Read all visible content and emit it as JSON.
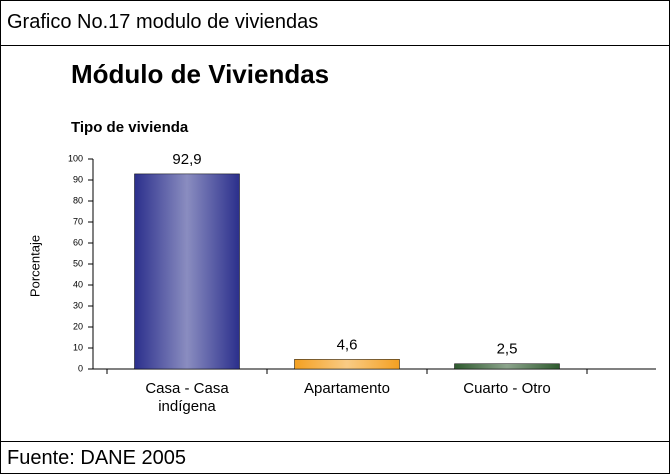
{
  "header": "Grafico No.17 modulo de viviendas",
  "footer": "Fuente: DANE 2005",
  "chart_data": {
    "type": "bar",
    "title": "Módulo de Viviendas",
    "subtitle": "Tipo de vivienda",
    "y_label": "Porcentaje",
    "categories": [
      "Casa - Casa indígena",
      "Apartamento",
      "Cuarto - Otro"
    ],
    "values": [
      92.9,
      4.6,
      2.5
    ],
    "value_labels": [
      "92,9",
      "4,6",
      "2,5"
    ],
    "colors": [
      "#2b2f8c",
      "#f4a021",
      "#2e5a2e"
    ],
    "ylim": [
      0,
      100
    ],
    "yticks": [
      0,
      10,
      20,
      30,
      40,
      50,
      60,
      70,
      80,
      90,
      100
    ]
  }
}
